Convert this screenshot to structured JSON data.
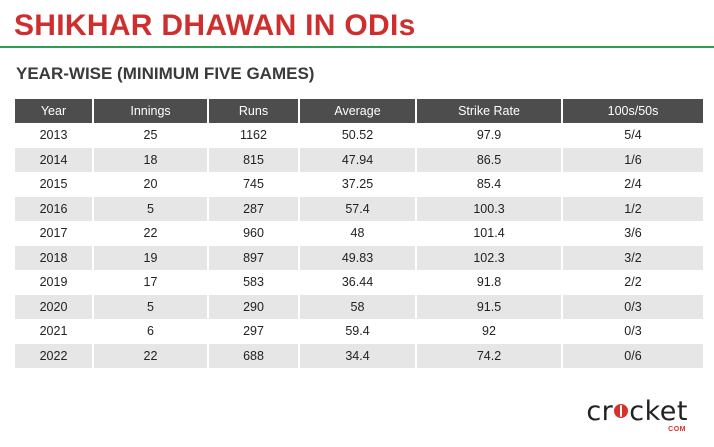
{
  "title": "SHIKHAR DHAWAN IN ODIs",
  "subtitle": "YEAR-WISE (MINIMUM FIVE GAMES)",
  "table": {
    "headers": [
      "Year",
      "Innings",
      "Runs",
      "Average",
      "Strike Rate",
      "100s/50s"
    ],
    "rows": [
      [
        "2013",
        "25",
        "1162",
        "50.52",
        "97.9",
        "5/4"
      ],
      [
        "2014",
        "18",
        "815",
        "47.94",
        "86.5",
        "1/6"
      ],
      [
        "2015",
        "20",
        "745",
        "37.25",
        "85.4",
        "2/4"
      ],
      [
        "2016",
        "5",
        "287",
        "57.4",
        "100.3",
        "1/2"
      ],
      [
        "2017",
        "22",
        "960",
        "48",
        "101.4",
        "3/6"
      ],
      [
        "2018",
        "19",
        "897",
        "49.83",
        "102.3",
        "3/2"
      ],
      [
        "2019",
        "17",
        "583",
        "36.44",
        "91.8",
        "2/2"
      ],
      [
        "2020",
        "5",
        "290",
        "58",
        "91.5",
        "0/3"
      ],
      [
        "2021",
        "6",
        "297",
        "59.4",
        "92",
        "0/3"
      ],
      [
        "2022",
        "22",
        "688",
        "34.4",
        "74.2",
        "0/6"
      ]
    ]
  },
  "logo": {
    "text_before": "cr",
    "text_after": "cket",
    "sub": "COM"
  },
  "colors": {
    "title": "#cf2e2e",
    "rule": "#2f9e52",
    "header_bg": "#4d4d4d",
    "stripe": "#e6e6e6",
    "logo_accent": "#d9302c"
  }
}
